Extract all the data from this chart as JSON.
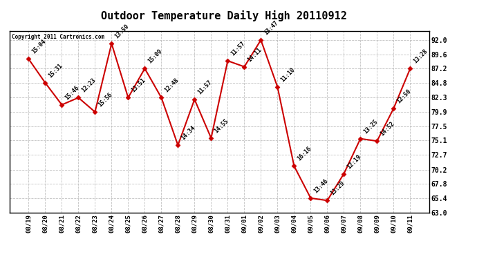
{
  "title": "Outdoor Temperature Daily High 20110912",
  "copyright": "Copyright 2011 Cartronics.com",
  "dates": [
    "08/19",
    "08/20",
    "08/21",
    "08/22",
    "08/23",
    "08/24",
    "08/25",
    "08/26",
    "08/27",
    "08/28",
    "08/29",
    "08/30",
    "08/31",
    "09/01",
    "09/02",
    "09/03",
    "09/04",
    "09/05",
    "09/06",
    "09/07",
    "09/08",
    "09/09",
    "09/10",
    "09/11"
  ],
  "temperatures": [
    88.8,
    84.8,
    81.1,
    82.3,
    79.9,
    91.4,
    82.3,
    87.2,
    82.3,
    74.3,
    82.0,
    75.5,
    88.5,
    87.5,
    92.0,
    84.1,
    70.8,
    65.4,
    65.0,
    69.5,
    75.4,
    75.0,
    80.5,
    87.2
  ],
  "time_labels": [
    "15:04",
    "15:31",
    "15:46",
    "12:23",
    "15:56",
    "13:59",
    "13:51",
    "15:09",
    "12:48",
    "14:34",
    "11:57",
    "14:55",
    "11:57",
    "14:11",
    "13:47",
    "11:10",
    "16:16",
    "13:46",
    "13:29",
    "12:19",
    "13:25",
    "14:52",
    "12:50",
    "13:28"
  ],
  "ylim_min": 63.0,
  "ylim_max": 92.0,
  "ytick_upper": 93.5,
  "yticks": [
    63.0,
    65.4,
    67.8,
    70.2,
    72.7,
    75.1,
    77.5,
    79.9,
    82.3,
    84.8,
    87.2,
    89.6,
    92.0
  ],
  "line_color": "#cc0000",
  "bg_color": "#ffffff",
  "grid_color": "#bbbbbb"
}
